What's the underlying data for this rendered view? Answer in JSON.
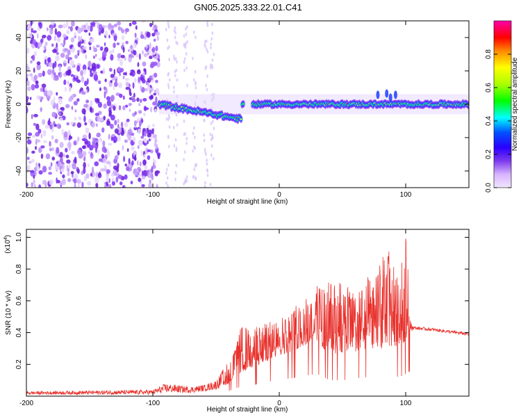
{
  "title": "GN05.2025.333.22.01.C41",
  "chart_data": [
    {
      "type": "heatmap",
      "name": "spectrogram",
      "xlabel": "Height of straight line (km)",
      "ylabel": "Frequency (Hz)",
      "xlim": [
        -200,
        150
      ],
      "ylim": [
        -50,
        50
      ],
      "xticks": [
        -200,
        -100,
        0,
        100
      ],
      "xtick_labels": [
        "-200",
        "-100",
        "0",
        "100"
      ],
      "yticks": [
        -40,
        -20,
        0,
        20,
        40
      ],
      "ytick_labels": [
        "-40",
        "-20",
        "0",
        "20",
        "40"
      ],
      "noise_region_x": [
        -200,
        -95
      ],
      "signal_band_hz": 0,
      "colorbar": {
        "label": "Normalized spectral amplitude",
        "range": [
          0,
          1
        ],
        "ticks": [
          0.0,
          0.2,
          0.4,
          0.6,
          0.8
        ],
        "tick_labels": [
          "0.0",
          "0.2",
          "0.4",
          "0.6",
          "0.8"
        ]
      }
    },
    {
      "type": "line",
      "name": "snr",
      "xlabel": "Height of straight line (km)",
      "ylabel": "SNR (10 * v/v)",
      "yscale_label": "(x10",
      "yscale_exp": "4",
      "yscale_close": ")",
      "xlim": [
        -200,
        150
      ],
      "ylim": [
        0,
        1.05
      ],
      "xticks": [
        -200,
        -100,
        0,
        100
      ],
      "xtick_labels": [
        "-200",
        "-100",
        "0",
        "100"
      ],
      "yticks": [
        0.2,
        0.4,
        0.6,
        0.8,
        1.0
      ],
      "ytick_labels": [
        "0.2",
        "0.4",
        "0.6",
        "0.8",
        "1.0"
      ],
      "color": "#e8322d",
      "envelope": {
        "x": [
          -200,
          -100,
          -90,
          -80,
          -70,
          -60,
          -50,
          -40,
          -35,
          -30,
          -25,
          -20,
          -10,
          0,
          10,
          20,
          30,
          40,
          50,
          60,
          70,
          80,
          85,
          90,
          95,
          100,
          104,
          106,
          120,
          150
        ],
        "base": [
          0.01,
          0.01,
          0.02,
          0.02,
          0.02,
          0.03,
          0.04,
          0.08,
          0.12,
          0.15,
          0.17,
          0.18,
          0.22,
          0.26,
          0.28,
          0.32,
          0.35,
          0.25,
          0.25,
          0.28,
          0.3,
          0.3,
          0.3,
          0.32,
          0.3,
          0.35,
          0.4,
          0.42,
          0.41,
          0.38
        ],
        "peak": [
          0.03,
          0.04,
          0.08,
          0.07,
          0.06,
          0.07,
          0.1,
          0.22,
          0.3,
          0.45,
          0.43,
          0.45,
          0.46,
          0.5,
          0.55,
          0.62,
          0.7,
          0.72,
          0.75,
          0.65,
          0.75,
          0.85,
          0.95,
          0.88,
          0.7,
          1.05,
          0.48,
          0.44,
          0.43,
          0.4
        ]
      }
    }
  ]
}
